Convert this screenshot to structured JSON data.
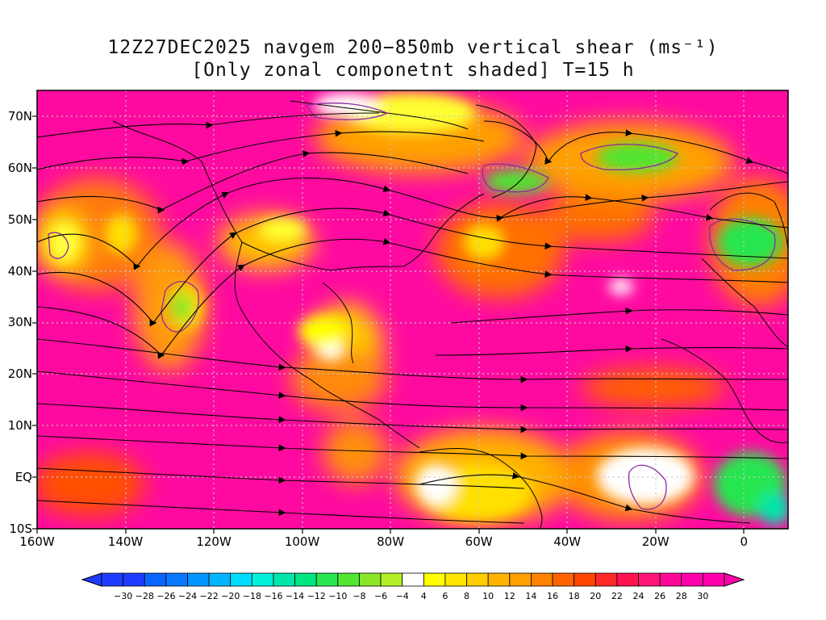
{
  "title": {
    "line1": "12Z27DEC2025 navgem 200−850mb vertical shear (ms⁻¹)",
    "line2": "[Only zonal componetnt shaded] T=15 h"
  },
  "map": {
    "lon_range": [
      -160,
      10
    ],
    "lat_range": [
      -10,
      75
    ],
    "lat_labels": [
      {
        "lat": 70,
        "text": "70N"
      },
      {
        "lat": 60,
        "text": "60N"
      },
      {
        "lat": 50,
        "text": "50N"
      },
      {
        "lat": 40,
        "text": "40N"
      },
      {
        "lat": 30,
        "text": "30N"
      },
      {
        "lat": 20,
        "text": "20N"
      },
      {
        "lat": 10,
        "text": "10N"
      },
      {
        "lat": 0,
        "text": "EQ"
      },
      {
        "lat": -10,
        "text": "10S"
      }
    ],
    "lon_labels": [
      {
        "lon": -160,
        "text": "160W"
      },
      {
        "lon": -140,
        "text": "140W"
      },
      {
        "lon": -120,
        "text": "120W"
      },
      {
        "lon": -100,
        "text": "100W"
      },
      {
        "lon": -80,
        "text": "80W"
      },
      {
        "lon": -60,
        "text": "60W"
      },
      {
        "lon": -40,
        "text": "40W"
      },
      {
        "lon": -20,
        "text": "20W"
      },
      {
        "lon": 0,
        "text": "0"
      }
    ]
  },
  "colorbar": {
    "labels": [
      "−30",
      "−28",
      "−26",
      "−24",
      "−22",
      "−20",
      "−18",
      "−16",
      "−14",
      "−12",
      "−10",
      "−8",
      "−6",
      "−4",
      "4",
      "6",
      "8",
      "10",
      "12",
      "14",
      "16",
      "18",
      "20",
      "22",
      "24",
      "26",
      "28",
      "30"
    ],
    "colors": [
      "#1e3cff",
      "#1e3cff",
      "#0a64ff",
      "#0a78ff",
      "#0096ff",
      "#00b4ff",
      "#00dcff",
      "#00f0dc",
      "#00e6aa",
      "#00e682",
      "#28e650",
      "#50e632",
      "#8ce628",
      "#b4f028",
      "#ffffff",
      "#ffff00",
      "#ffe600",
      "#ffcd00",
      "#ffb400",
      "#ffa000",
      "#ff8200",
      "#ff6400",
      "#ff4600",
      "#ff2828",
      "#ff1450",
      "#ff1478",
      "#ff0a96",
      "#ff00aa",
      "#ff00aa"
    ]
  },
  "chart_data": {
    "type": "heatmap",
    "variable": "200-850mb vertical shear, zonal component shaded",
    "units": "ms⁻¹",
    "shading_levels": [
      -30,
      -28,
      -26,
      -24,
      -22,
      -20,
      -18,
      -16,
      -14,
      -12,
      -10,
      -8,
      -6,
      -4,
      4,
      6,
      8,
      10,
      12,
      14,
      16,
      18,
      20,
      22,
      24,
      26,
      28,
      30
    ]
  }
}
